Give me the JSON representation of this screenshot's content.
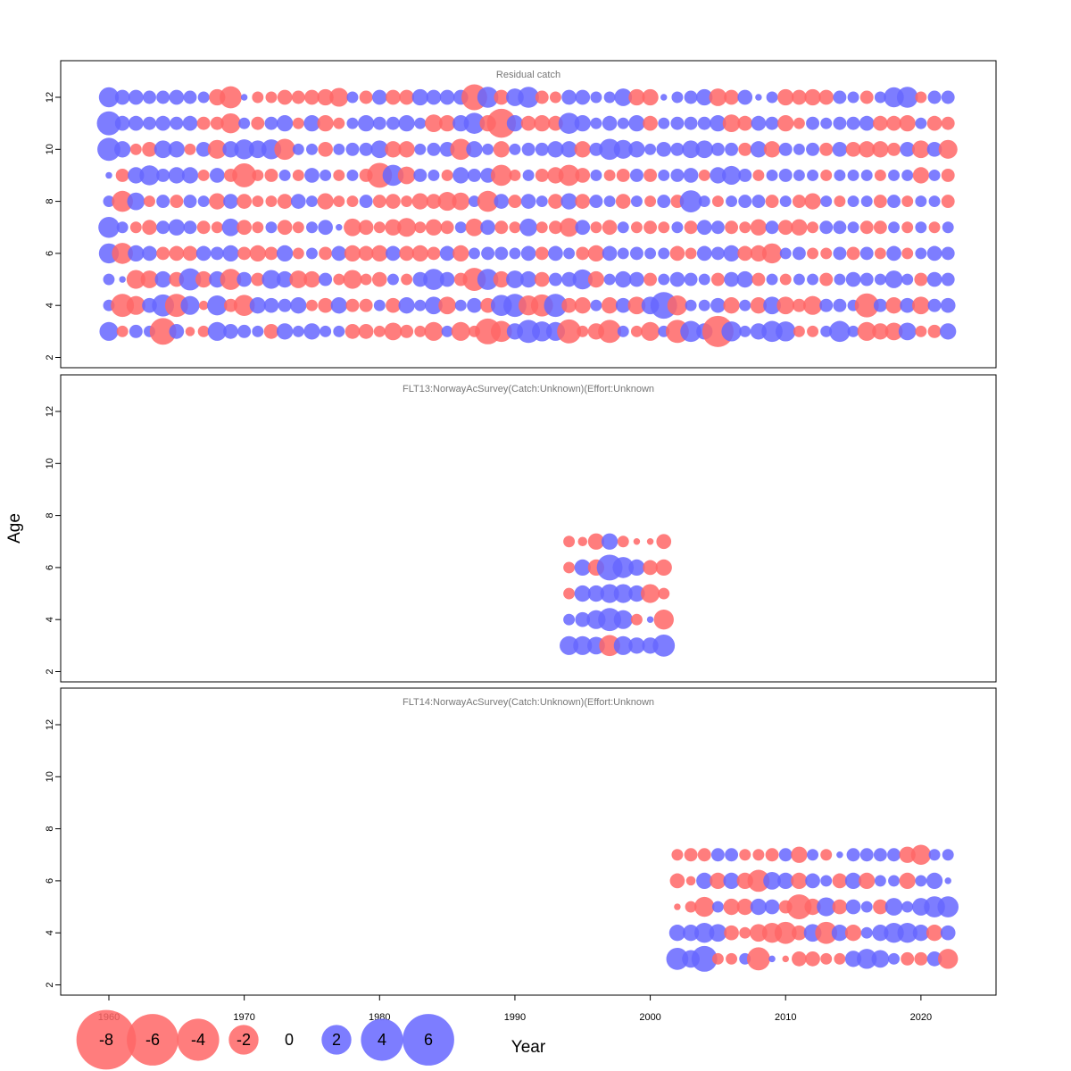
{
  "chart_data": {
    "type": "scatter",
    "subtype": "bubble residual plot",
    "xlabel": "Year",
    "ylabel": "Age",
    "xlim": [
      1956,
      2025
    ],
    "ylim": [
      1.5,
      13.5
    ],
    "x_ticks": [
      1960,
      1970,
      1980,
      1990,
      2000,
      2010,
      2020
    ],
    "y_ticks": [
      2,
      4,
      6,
      8,
      10,
      12
    ],
    "colors": {
      "positive": "#6666ff",
      "negative": "#ff6666",
      "positive_text": "#0000cc",
      "negative_text": "#aa0000"
    },
    "legend": {
      "values": [
        -8,
        -6,
        -4,
        -2,
        0,
        2,
        4,
        6
      ],
      "labels": [
        "-8",
        "-6",
        "-4",
        "-2",
        "0",
        "2",
        "4",
        "6"
      ]
    },
    "panels": [
      {
        "title": "Residual catch",
        "years": [
          1960,
          2022
        ],
        "ages": [
          3,
          4,
          5,
          6,
          7,
          8,
          9,
          10,
          11,
          12
        ],
        "residuals": [
          [
            0.8,
            -0.3,
            0.4,
            0.3,
            -1.6,
            0.5,
            -0.2,
            -0.3,
            0.8,
            0.5,
            0.4,
            0.3,
            -0.5,
            0.6,
            0.3,
            0.6,
            0.3,
            0.3,
            -0.5,
            -0.5,
            -0.3,
            -0.7,
            -0.4,
            -0.3,
            -0.8,
            0.3,
            -0.8,
            -0.3,
            -1.5,
            -1.0,
            0.6,
            1.2,
            0.9,
            0.8,
            -1.3,
            -0.3,
            -0.6,
            -1.2,
            0.3,
            -0.3,
            -0.8,
            0.3,
            -1.2,
            1.0,
            0.6,
            -2.2,
            0.9,
            0.3,
            0.6,
            1.0,
            0.9,
            -0.3,
            -0.3,
            0.3,
            1.0,
            0.3,
            -0.8,
            -0.6,
            -0.7,
            0.7,
            -0.3,
            -0.4,
            0.6
          ],
          [
            0.3,
            -1.2,
            -0.8,
            0.5,
            1.1,
            -1.2,
            0.8,
            -0.2,
            0.9,
            -0.4,
            -1.0,
            0.6,
            0.5,
            0.4,
            0.6,
            -0.3,
            -0.5,
            0.6,
            -0.4,
            -0.4,
            0.3,
            -0.5,
            0.6,
            0.3,
            0.7,
            -0.7,
            0.3,
            0.5,
            -0.5,
            1.0,
            1.2,
            -0.9,
            -1.1,
            1.2,
            -0.5,
            -0.6,
            0.3,
            -0.6,
            0.5,
            -0.7,
            0.7,
            1.6,
            -0.9,
            0.3,
            0.3,
            0.5,
            -0.6,
            0.3,
            -0.6,
            0.7,
            -0.7,
            -0.4,
            -0.8,
            0.4,
            0.4,
            0.3,
            -1.3,
            0.4,
            -0.6,
            0.5,
            -0.7,
            0.4,
            0.5
          ],
          [
            0.3,
            0.1,
            -0.8,
            -0.7,
            0.6,
            -0.5,
            1.1,
            -0.6,
            0.6,
            -1.0,
            0.5,
            -0.4,
            0.8,
            0.6,
            -0.7,
            -0.6,
            0.4,
            -0.3,
            -0.8,
            -0.3,
            -0.5,
            0.3,
            -0.3,
            0.5,
            1.0,
            0.5,
            -0.4,
            -1.2,
            1.0,
            -0.6,
            0.7,
            0.6,
            -0.5,
            0.4,
            0.5,
            0.9,
            -0.6,
            0.3,
            0.6,
            0.5,
            -0.4,
            0.3,
            0.5,
            0.4,
            0.3,
            -0.4,
            0.5,
            0.6,
            -0.4,
            0.3,
            -0.3,
            0.3,
            0.3,
            -0.4,
            0.3,
            0.5,
            0.4,
            0.3,
            0.7,
            0.3,
            -0.4,
            0.5,
            0.4
          ],
          [
            0.9,
            -1.0,
            0.6,
            0.5,
            -0.4,
            -0.5,
            -0.5,
            0.5,
            0.4,
            0.6,
            -0.4,
            -0.6,
            -0.4,
            0.6,
            -0.3,
            0.3,
            -0.4,
            0.5,
            -0.6,
            -0.5,
            -0.6,
            0.5,
            -0.5,
            -0.6,
            -0.4,
            0.5,
            -0.6,
            0.3,
            0.4,
            0.4,
            0.3,
            0.5,
            -0.4,
            0.5,
            0.3,
            -0.4,
            -0.6,
            0.5,
            0.3,
            0.4,
            0.3,
            0.3,
            -0.5,
            -0.3,
            0.5,
            0.4,
            0.6,
            -0.5,
            -0.6,
            -0.9,
            0.3,
            0.4,
            -0.3,
            -0.3,
            0.4,
            -0.4,
            0.4,
            -0.3,
            0.5,
            -0.3,
            0.3,
            0.5,
            0.4
          ],
          [
            1.0,
            0.3,
            -0.3,
            -0.5,
            0.4,
            0.6,
            0.4,
            -0.4,
            -0.3,
            0.7,
            -0.5,
            -0.3,
            0.3,
            -0.5,
            -0.3,
            0.3,
            0.5,
            0.1,
            -0.7,
            -0.5,
            -0.3,
            -0.6,
            -0.8,
            -0.3,
            -0.6,
            -0.4,
            0.3,
            -0.7,
            0.5,
            -0.4,
            -0.3,
            0.7,
            -0.3,
            -0.4,
            -0.8,
            0.5,
            -0.3,
            -0.5,
            0.3,
            -0.3,
            -0.4,
            -0.3,
            0.3,
            -0.4,
            0.5,
            0.4,
            -0.4,
            -0.3,
            -0.6,
            0.4,
            -0.5,
            -0.6,
            -0.3,
            0.4,
            0.4,
            0.3,
            -0.4,
            -0.4,
            0.3,
            -0.3,
            0.3,
            -0.3,
            0.3
          ],
          [
            0.3,
            -1.0,
            0.7,
            -0.3,
            0.4,
            -0.4,
            0.4,
            0.3,
            -0.6,
            0.5,
            -0.5,
            -0.3,
            -0.3,
            -0.5,
            0.5,
            0.3,
            -0.6,
            -0.3,
            -0.3,
            0.4,
            -0.4,
            -0.5,
            -0.3,
            -0.6,
            -0.5,
            -0.8,
            -0.7,
            0.3,
            -1.0,
            0.5,
            -0.4,
            0.5,
            0.3,
            -0.5,
            0.6,
            -0.5,
            0.4,
            0.3,
            -0.5,
            0.3,
            -0.3,
            0.4,
            -0.4,
            1.1,
            0.3,
            -0.3,
            0.3,
            0.4,
            0.4,
            -0.4,
            0.3,
            -0.4,
            -0.6,
            0.3,
            -0.3,
            0.3,
            0.3,
            -0.4,
            0.4,
            -0.3,
            0.3,
            0.3,
            -0.4
          ],
          [
            0.1,
            -0.4,
            0.6,
            0.9,
            0.4,
            0.6,
            0.6,
            -0.3,
            0.5,
            -0.4,
            -1.3,
            -0.3,
            -0.4,
            0.3,
            -0.3,
            0.5,
            0.3,
            -0.3,
            0.3,
            -0.4,
            -1.4,
            1.0,
            -0.7,
            0.4,
            0.3,
            -0.3,
            0.6,
            0.4,
            0.5,
            -1.0,
            -0.3,
            0.3,
            -0.4,
            -0.6,
            -1.0,
            -0.5,
            0.3,
            -0.3,
            -0.4,
            0.4,
            -0.4,
            0.3,
            0.4,
            0.5,
            -0.3,
            0.6,
            0.8,
            0.4,
            -0.3,
            0.3,
            0.4,
            0.3,
            0.3,
            -0.3,
            0.3,
            0.3,
            0.3,
            -0.3,
            0.3,
            0.3,
            -0.6,
            0.3,
            -0.4
          ],
          [
            1.2,
            0.6,
            -0.3,
            -0.5,
            0.7,
            0.6,
            -0.3,
            0.5,
            -0.8,
            0.6,
            0.9,
            0.7,
            0.9,
            -1.0,
            0.3,
            0.3,
            -0.5,
            0.3,
            0.4,
            0.4,
            0.7,
            -0.6,
            -0.6,
            0.3,
            0.4,
            0.5,
            -1.0,
            0.6,
            0.3,
            -0.6,
            0.3,
            0.4,
            0.4,
            0.6,
            0.6,
            -0.6,
            0.4,
            1.0,
            0.8,
            0.6,
            0.3,
            0.5,
            0.4,
            0.7,
            0.7,
            0.4,
            0.4,
            -0.4,
            0.6,
            -0.6,
            0.4,
            0.3,
            0.4,
            -0.4,
            0.5,
            -0.5,
            -0.6,
            -0.6,
            -0.4,
            0.5,
            -0.7,
            0.5,
            -0.8
          ],
          [
            1.3,
            0.5,
            0.5,
            0.4,
            0.5,
            0.4,
            0.5,
            -0.4,
            -0.4,
            -0.9,
            0.3,
            -0.4,
            0.4,
            0.6,
            -0.3,
            0.6,
            -0.6,
            -0.3,
            0.3,
            0.6,
            0.4,
            0.4,
            0.6,
            0.3,
            -0.7,
            -0.6,
            0.6,
            1.0,
            -0.6,
            -1.9,
            0.6,
            -0.5,
            -0.6,
            -0.5,
            1.0,
            0.6,
            0.3,
            0.5,
            0.3,
            0.6,
            -0.5,
            0.3,
            0.4,
            0.4,
            0.4,
            0.6,
            -0.7,
            -0.5,
            0.5,
            0.4,
            -0.6,
            -0.3,
            0.4,
            0.3,
            0.4,
            0.4,
            0.5,
            -0.5,
            -0.5,
            -0.6,
            0.3,
            -0.5,
            -0.4
          ],
          [
            0.9,
            0.5,
            0.5,
            0.4,
            0.4,
            0.5,
            0.4,
            0.3,
            -0.6,
            -1.1,
            0.1,
            -0.3,
            -0.3,
            -0.5,
            -0.4,
            -0.5,
            -0.6,
            -0.8,
            0.3,
            -0.4,
            0.5,
            -0.5,
            -0.5,
            0.6,
            0.5,
            0.5,
            0.5,
            -1.5,
            1.0,
            -0.5,
            0.7,
            1.0,
            -0.4,
            -0.3,
            0.5,
            0.5,
            0.3,
            0.3,
            0.7,
            -0.6,
            -0.6,
            0.1,
            0.3,
            0.4,
            0.6,
            -0.7,
            -0.5,
            0.5,
            0.1,
            0.3,
            -0.6,
            -0.5,
            -0.6,
            -0.5,
            0.4,
            0.3,
            -0.4,
            0.3,
            0.9,
            1.0,
            -0.3,
            0.4,
            0.4
          ]
        ]
      },
      {
        "title": "FLT13:NorwayAcSurvey(Catch:Unknown)(Effort:Unknown",
        "years": [
          1994,
          2001
        ],
        "ages": [
          3,
          4,
          5,
          6,
          7
        ],
        "residuals": [
          [
            0.8,
            0.8,
            0.7,
            -1.0,
            0.8,
            0.6,
            0.6,
            1.1
          ],
          [
            0.3,
            0.5,
            0.8,
            1.2,
            0.8,
            -0.3,
            0.1,
            -0.9
          ],
          [
            -0.3,
            0.6,
            0.6,
            0.8,
            0.8,
            0.6,
            -0.8,
            -0.3
          ],
          [
            -0.3,
            0.6,
            -0.6,
            1.5,
            1.0,
            0.6,
            -0.5,
            -0.6
          ],
          [
            -0.3,
            -0.2,
            -0.6,
            0.6,
            -0.3,
            -0.1,
            -0.1,
            -0.5
          ]
        ]
      },
      {
        "title": "FLT14:NorwayAcSurvey(Catch:Unknown)(Effort:Unknown",
        "years": [
          2002,
          2022
        ],
        "ages": [
          3,
          4,
          5,
          6,
          7
        ],
        "residuals": [
          [
            1.1,
            0.7,
            1.5,
            -0.3,
            -0.3,
            0.3,
            -1.2,
            0.1,
            -0.1,
            -0.5,
            -0.5,
            -0.3,
            -0.3,
            0.6,
            0.9,
            0.7,
            0.3,
            -0.4,
            -0.4,
            0.5,
            -0.9
          ],
          [
            0.6,
            0.6,
            0.9,
            0.7,
            -0.5,
            -0.3,
            -0.7,
            -0.9,
            -1.1,
            -0.5,
            0.7,
            -1.1,
            0.6,
            -0.6,
            0.3,
            0.6,
            0.9,
            0.9,
            0.6,
            -0.6,
            0.5
          ],
          [
            -0.1,
            -0.3,
            -0.9,
            0.3,
            -0.6,
            -0.6,
            0.6,
            0.5,
            -0.4,
            -1.4,
            -0.6,
            0.8,
            -0.5,
            0.5,
            0.3,
            -0.5,
            0.7,
            0.3,
            0.7,
            1.0,
            1.0
          ],
          [
            -0.5,
            -0.2,
            0.6,
            -0.6,
            0.6,
            -0.6,
            -1.1,
            0.7,
            0.6,
            -0.6,
            0.5,
            0.3,
            -0.5,
            0.6,
            -0.6,
            0.3,
            0.3,
            -0.6,
            0.3,
            0.6,
            0.1
          ],
          [
            -0.3,
            -0.4,
            -0.4,
            0.4,
            0.4,
            -0.3,
            -0.3,
            -0.4,
            0.4,
            -0.6,
            0.3,
            -0.3,
            0.1,
            0.4,
            0.4,
            0.4,
            0.4,
            -0.6,
            -0.9,
            0.3,
            0.3
          ]
        ]
      }
    ]
  }
}
